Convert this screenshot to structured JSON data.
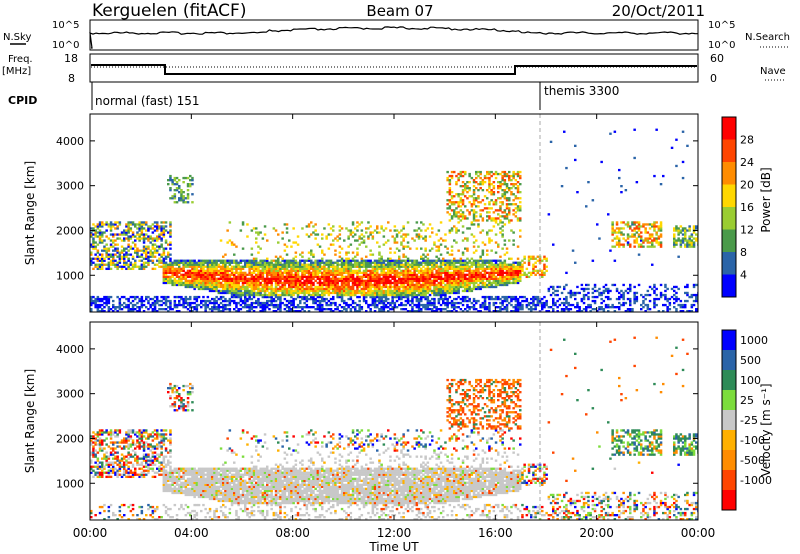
{
  "header": {
    "title": "Kerguelen (fitACF)",
    "beam": "Beam 07",
    "date": "20/Oct/2011"
  },
  "noise_panel": {
    "left_label": "N.Sky",
    "right_label": "N.Search",
    "ticks": [
      "10^5",
      "10^0"
    ]
  },
  "freq_panel": {
    "left_label_line1": "Freq.",
    "left_label_line2": "[MHz]",
    "left_ticks": [
      "18",
      "8"
    ],
    "right_label": "Nave",
    "right_ticks": [
      "60",
      "0"
    ]
  },
  "cpid": {
    "label": "CPID",
    "segments": [
      {
        "name": "normal (fast) 151",
        "start_h": 0,
        "end_h": 18
      },
      {
        "name": "themis 3300",
        "start_h": 18,
        "end_h": 24
      }
    ]
  },
  "colors": {
    "power": [
      "#0000ff",
      "#2a64a8",
      "#4a9a4a",
      "#9acd32",
      "#ffd700",
      "#ff8c00",
      "#ff4500",
      "#ff0000"
    ],
    "velocity": [
      "#ff0000",
      "#ff4500",
      "#ff8c00",
      "#ffb000",
      "#c8c8c8",
      "#c8c8c8",
      "#7cdc3c",
      "#2e8b57",
      "#2a64a8",
      "#0000ff"
    ]
  },
  "chart_data": [
    {
      "type": "heatmap",
      "name": "power",
      "xlabel": "",
      "ylabel": "Slant Range [km]",
      "xlim": [
        0,
        24
      ],
      "ylim": [
        180,
        4600
      ],
      "yticks": [
        1000,
        2000,
        3000,
        4000
      ],
      "colorbar": {
        "label": "Power [dB]",
        "ticks": [
          "28",
          "24",
          "20",
          "16",
          "12",
          "8",
          "4"
        ]
      }
    },
    {
      "type": "heatmap",
      "name": "velocity",
      "xlabel": "Time UT",
      "ylabel": "Slant Range [km]",
      "xlim": [
        0,
        24
      ],
      "ylim": [
        180,
        4600
      ],
      "yticks": [
        1000,
        2000,
        3000,
        4000
      ],
      "xticks": [
        "00:00",
        "04:00",
        "08:00",
        "12:00",
        "16:00",
        "20:00",
        "00:00"
      ],
      "colorbar": {
        "label": "Velocity [m s⁻¹]",
        "ticks": [
          "1000",
          "500",
          "100",
          "25",
          "-25",
          "-100",
          "-500",
          "-1000"
        ]
      }
    }
  ]
}
